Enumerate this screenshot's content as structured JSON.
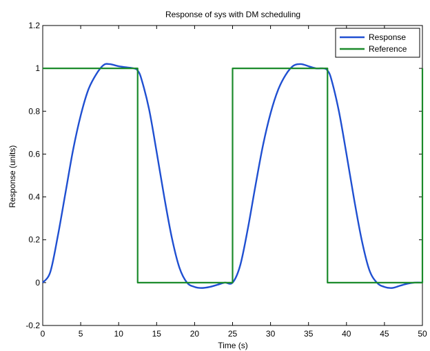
{
  "chart_data": {
    "type": "line",
    "title": "Response of sys with DM scheduling",
    "xlabel": "Time (s)",
    "ylabel": "Response (units)",
    "xlim": [
      0,
      50
    ],
    "ylim": [
      -0.2,
      1.2
    ],
    "xticks": [
      0,
      5,
      10,
      15,
      20,
      25,
      30,
      35,
      40,
      45,
      50
    ],
    "yticks": [
      -0.2,
      0,
      0.2,
      0.4,
      0.6,
      0.8,
      1,
      1.2
    ],
    "xtick_labels": [
      "0",
      "5",
      "10",
      "15",
      "20",
      "25",
      "30",
      "35",
      "40",
      "45",
      "50"
    ],
    "ytick_labels": [
      "-0.2",
      "0",
      "0.2",
      "0.4",
      "0.6",
      "0.8",
      "1",
      "1.2"
    ],
    "grid": false,
    "legend_position": "top-right",
    "series": [
      {
        "name": "Response",
        "color": "#1f4fd1",
        "x": [
          0,
          1,
          2,
          3,
          4,
          5,
          6,
          7,
          8,
          8.8,
          10,
          11,
          12,
          12.5,
          13,
          14,
          15,
          16,
          17,
          18,
          19,
          20,
          21,
          22,
          23,
          24,
          25,
          26,
          27,
          28,
          29,
          30,
          31,
          32,
          33,
          34,
          35,
          36,
          37,
          37.5,
          38,
          39,
          40,
          41,
          42,
          43,
          44,
          45,
          46,
          47,
          48,
          49,
          50
        ],
        "y": [
          0,
          0.05,
          0.22,
          0.42,
          0.62,
          0.78,
          0.9,
          0.97,
          1.015,
          1.02,
          1.01,
          1.005,
          1.0,
          0.99,
          0.95,
          0.81,
          0.61,
          0.4,
          0.21,
          0.07,
          0.0,
          -0.02,
          -0.025,
          -0.02,
          -0.01,
          0.0,
          0.0,
          0.08,
          0.25,
          0.45,
          0.64,
          0.79,
          0.9,
          0.97,
          1.012,
          1.02,
          1.01,
          1.0,
          1.0,
          0.99,
          0.95,
          0.8,
          0.6,
          0.39,
          0.2,
          0.06,
          0.0,
          -0.02,
          -0.025,
          -0.015,
          -0.005,
          0.0,
          0.0
        ]
      },
      {
        "name": "Reference",
        "color": "#1a8a2a",
        "x": [
          0,
          12.5,
          12.5,
          25,
          25,
          37.5,
          37.5,
          50,
          50
        ],
        "y": [
          1,
          1,
          0,
          0,
          1,
          1,
          0,
          0,
          1
        ]
      }
    ]
  }
}
